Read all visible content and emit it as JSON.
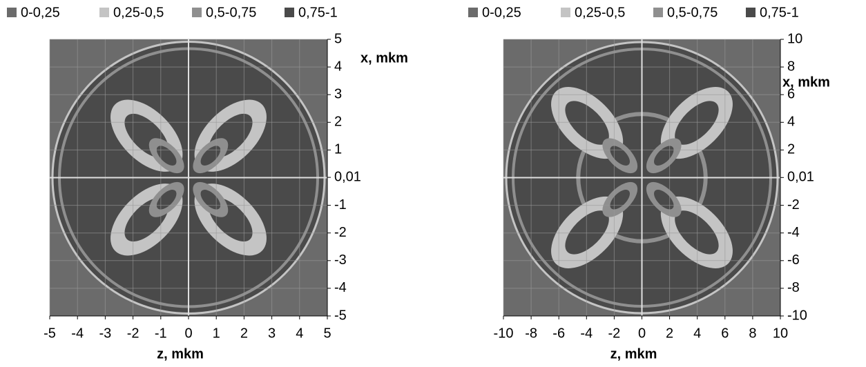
{
  "chart_data": [
    {
      "type": "surface",
      "xlabel": "z, mkm",
      "ylabel": "x, mkm",
      "series": [
        {
          "name": "0-0,25",
          "color": "#6b6b6b"
        },
        {
          "name": "0,25-0,5",
          "color": "#c4c4c4"
        },
        {
          "name": "0,5-0,75",
          "color": "#8f8f8f"
        },
        {
          "name": "0,75-1",
          "color": "#4a4a4a"
        }
      ],
      "xlim": [
        -5,
        5
      ],
      "ylim": [
        -5,
        5
      ],
      "xticks": [
        -5,
        -4,
        -3,
        -2,
        -1,
        0,
        1,
        2,
        3,
        4,
        5
      ],
      "yticks": [
        5,
        4,
        3,
        2,
        1,
        {
          "value": 0.01,
          "label": "0,01"
        },
        -1,
        -2,
        -3,
        -4,
        -5
      ],
      "grid": true
    },
    {
      "type": "surface",
      "xlabel": "z, mkm",
      "ylabel": "x, mkm",
      "series": [
        {
          "name": "0-0,25",
          "color": "#6b6b6b"
        },
        {
          "name": "0,25-0,5",
          "color": "#c4c4c4"
        },
        {
          "name": "0,5-0,75",
          "color": "#8f8f8f"
        },
        {
          "name": "0,75-1",
          "color": "#4a4a4a"
        }
      ],
      "xlim": [
        -10,
        10
      ],
      "ylim": [
        -10,
        10
      ],
      "xticks": [
        -10,
        -8,
        -6,
        -4,
        -2,
        0,
        2,
        4,
        6,
        8,
        10
      ],
      "yticks": [
        10,
        8,
        6,
        4,
        2,
        {
          "value": 0.01,
          "label": "0,01"
        },
        -2,
        -4,
        -6,
        -8,
        -10
      ],
      "grid": true
    }
  ]
}
